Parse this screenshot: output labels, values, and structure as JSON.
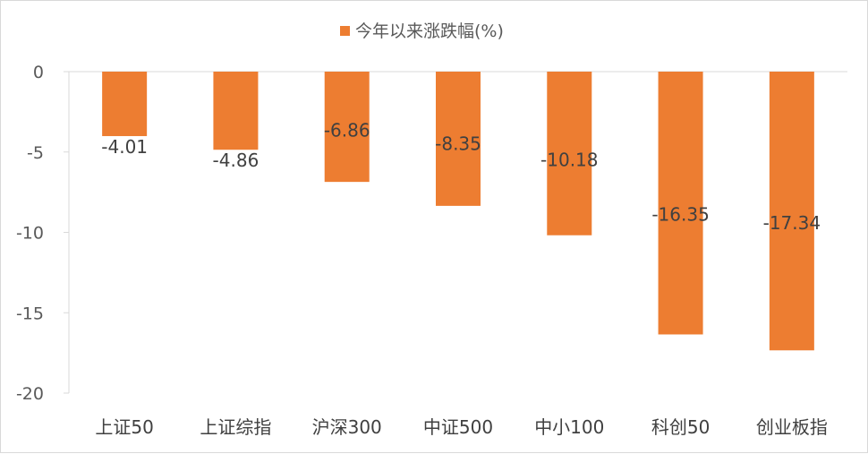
{
  "chart_data": {
    "type": "bar",
    "categories": [
      "上证50",
      "上证综指",
      "沪深300",
      "中证500",
      "中小100",
      "科创50",
      "创业板指"
    ],
    "series": [
      {
        "name": "今年以来涨跌幅(%)",
        "values": [
          -4.01,
          -4.86,
          -6.86,
          -8.35,
          -10.18,
          -16.35,
          -17.34
        ],
        "labels": [
          "-4.01",
          "-4.86",
          "-6.86",
          "-8.35",
          "-10.18",
          "-16.35",
          "-17.34"
        ],
        "color": "#ED7D31"
      }
    ],
    "yticks": [
      0,
      -5,
      -10,
      -15,
      -20
    ],
    "ylim": [
      -20,
      0
    ],
    "legend_position": "top-center",
    "grid": false,
    "axis_color": "#d9d9d9"
  }
}
